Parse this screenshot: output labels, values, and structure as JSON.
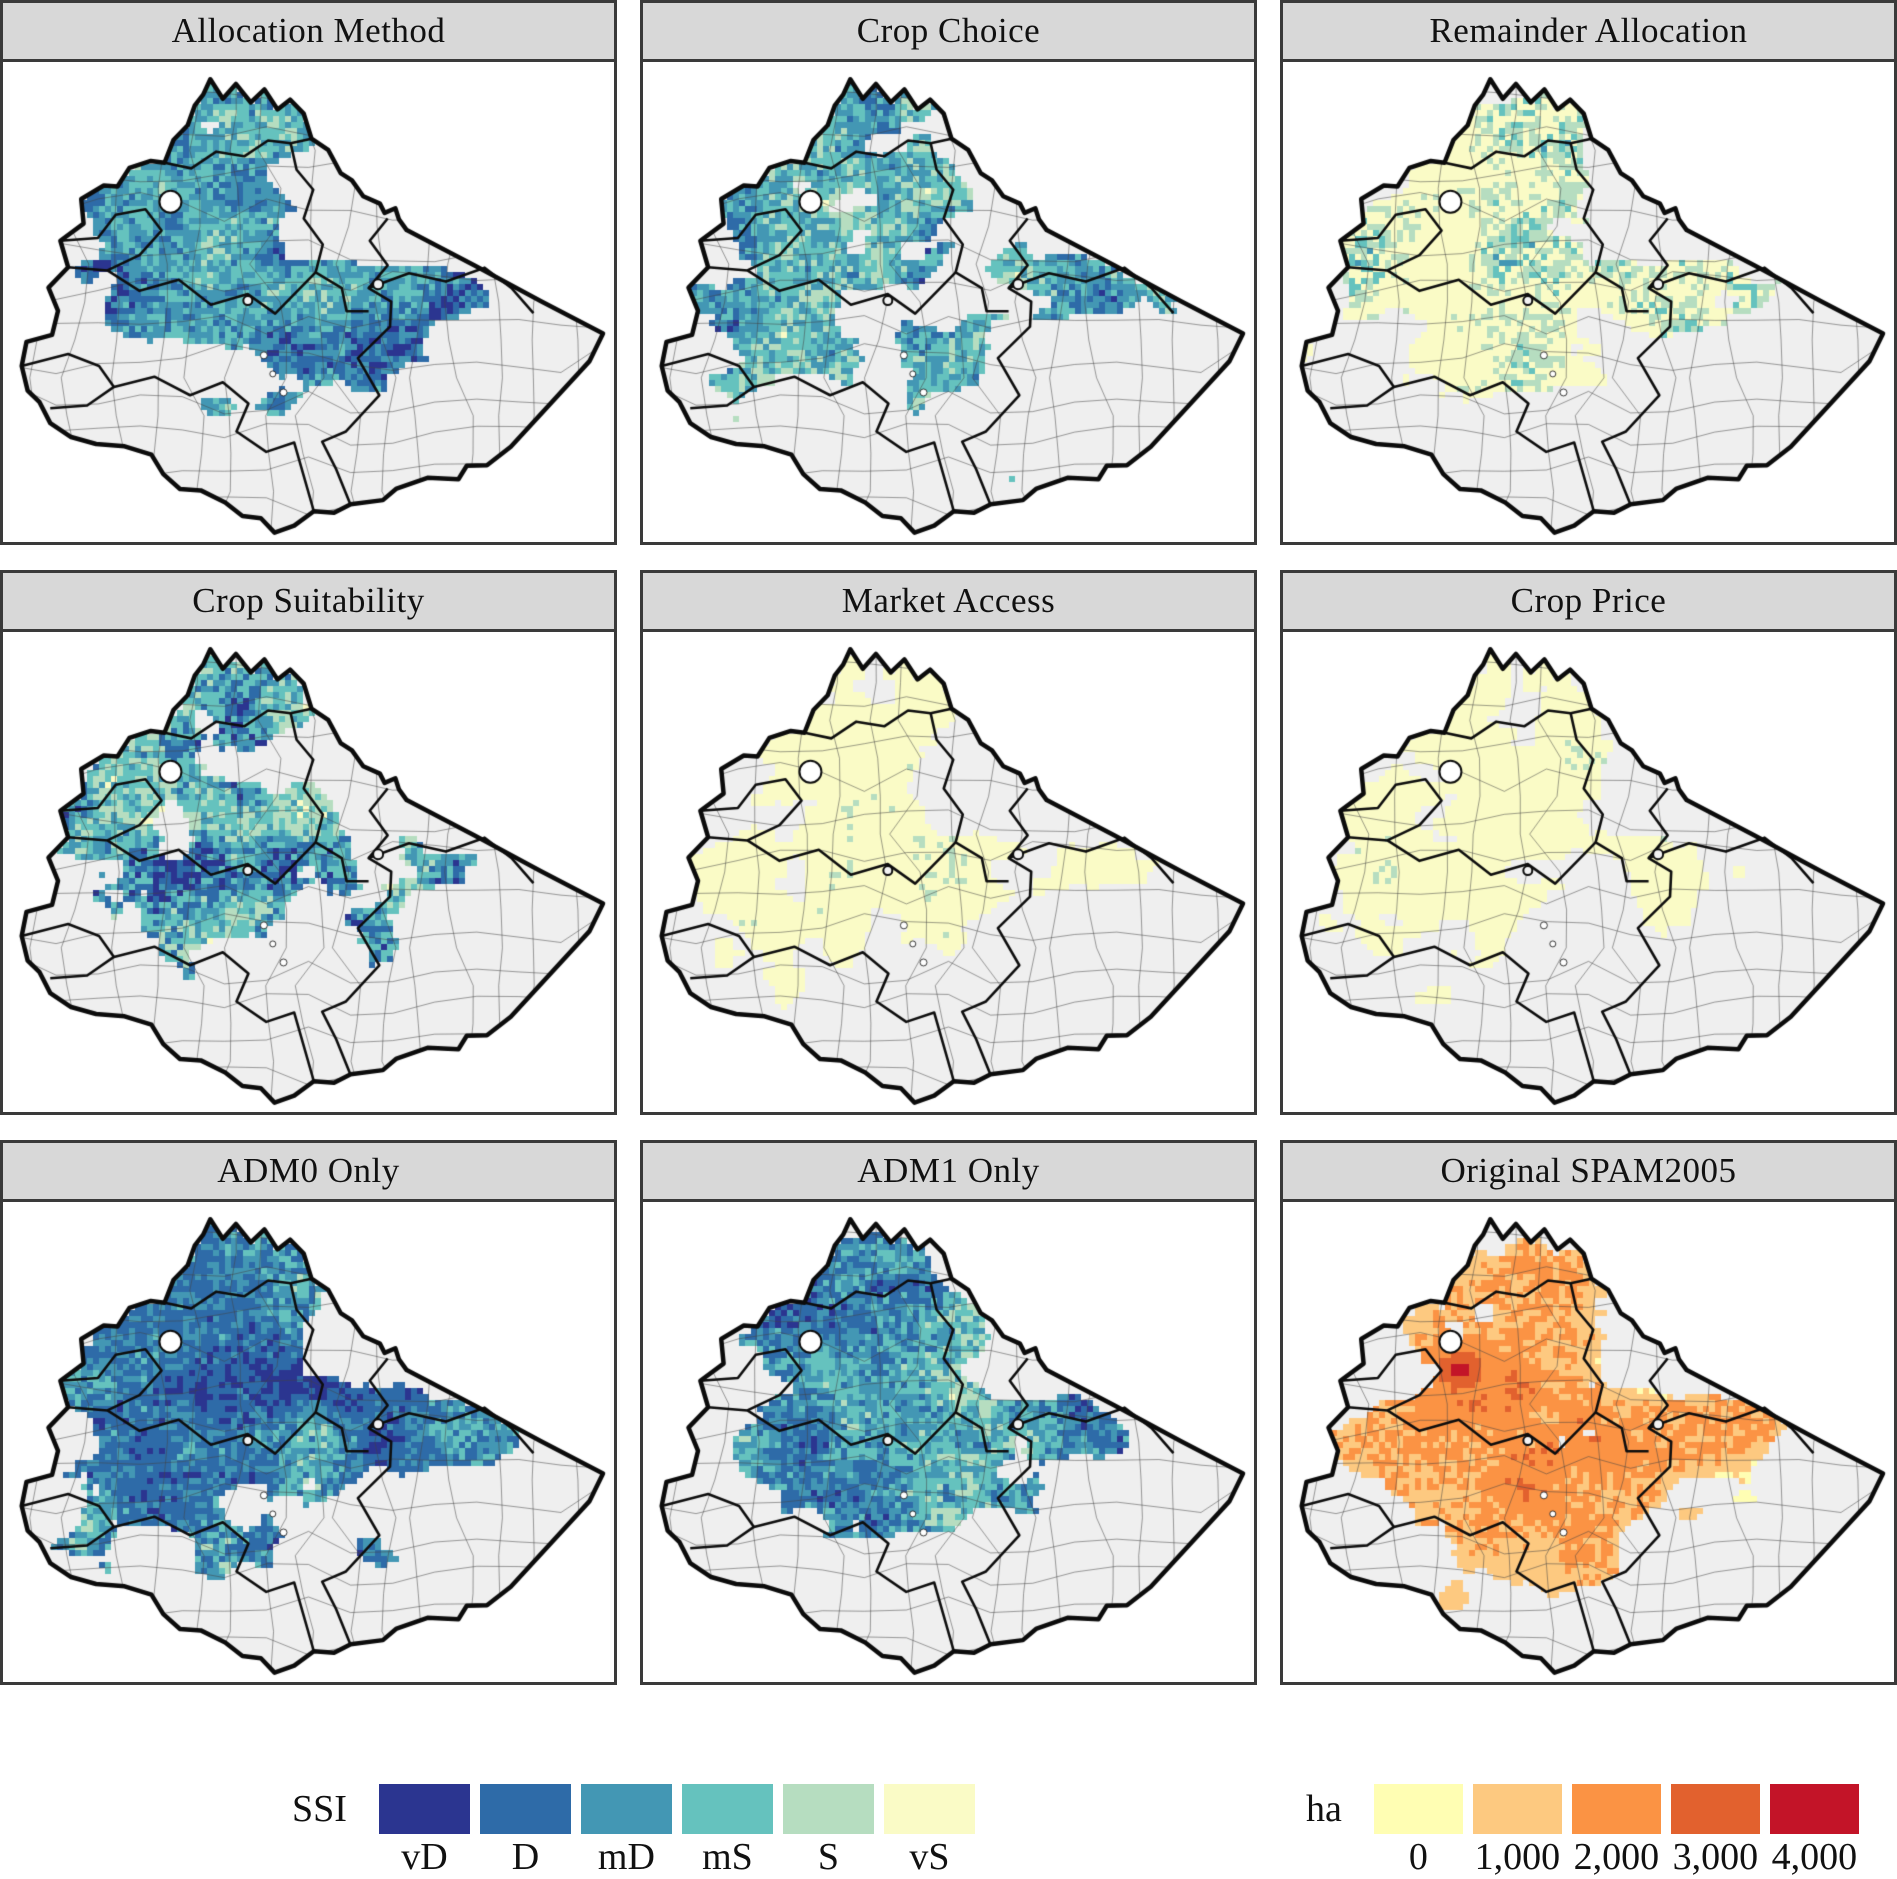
{
  "figure": {
    "panels": [
      {
        "title": "Allocation Method",
        "legend": "ssi",
        "raster": {
          "seed": 3,
          "density": 0.55,
          "weights": [
            0.28,
            0.14,
            0.16,
            0.16,
            0.13,
            0.13
          ]
        }
      },
      {
        "title": "Crop Choice",
        "legend": "ssi",
        "raster": {
          "seed": 17,
          "density": 0.5,
          "weights": [
            0.2,
            0.12,
            0.15,
            0.15,
            0.14,
            0.24
          ]
        }
      },
      {
        "title": "Remainder Allocation",
        "legend": "ssi",
        "raster": {
          "seed": 29,
          "density": 0.44,
          "weights": [
            0.06,
            0.07,
            0.05,
            0.09,
            0.13,
            0.6
          ]
        }
      },
      {
        "title": "Crop Suitability",
        "legend": "ssi",
        "raster": {
          "seed": 41,
          "density": 0.47,
          "weights": [
            0.26,
            0.1,
            0.09,
            0.15,
            0.15,
            0.25
          ]
        }
      },
      {
        "title": "Market Access",
        "legend": "ssi",
        "raster": {
          "seed": 53,
          "density": 0.46,
          "weights": [
            0.02,
            0.02,
            0.03,
            0.07,
            0.11,
            0.75
          ]
        }
      },
      {
        "title": "Crop Price",
        "legend": "ssi",
        "raster": {
          "seed": 67,
          "density": 0.43,
          "weights": [
            0.01,
            0.02,
            0.03,
            0.08,
            0.12,
            0.74
          ]
        }
      },
      {
        "title": "ADM0 Only",
        "legend": "ssi",
        "raster": {
          "seed": 79,
          "density": 0.63,
          "weights": [
            0.3,
            0.22,
            0.14,
            0.13,
            0.11,
            0.1
          ]
        }
      },
      {
        "title": "ADM1 Only",
        "legend": "ssi",
        "raster": {
          "seed": 97,
          "density": 0.58,
          "weights": [
            0.26,
            0.18,
            0.13,
            0.16,
            0.14,
            0.13
          ]
        }
      },
      {
        "title": "Original SPAM2005",
        "legend": "ha",
        "raster": {
          "seed": 113,
          "density": 0.6,
          "weights": [
            0.34,
            0.3,
            0.24,
            0.09,
            0.03
          ],
          "hotspot": true
        }
      }
    ]
  },
  "legends": {
    "ssi": {
      "title": "SSI",
      "classes": [
        {
          "label": "vD",
          "color": "#2b3590"
        },
        {
          "label": "D",
          "color": "#2e6ba8"
        },
        {
          "label": "mD",
          "color": "#4397b4"
        },
        {
          "label": "mS",
          "color": "#65c2be"
        },
        {
          "label": "S",
          "color": "#b6ddc0"
        },
        {
          "label": "vS",
          "color": "#fafbc6"
        }
      ]
    },
    "ha": {
      "title": "ha",
      "classes": [
        {
          "label": "0",
          "color": "#fffeb3"
        },
        {
          "label": "1,000",
          "color": "#fdc980"
        },
        {
          "label": "2,000",
          "color": "#fb9344"
        },
        {
          "label": "3,000",
          "color": "#e2612e"
        },
        {
          "label": "4,000",
          "color": "#c31428"
        }
      ]
    }
  },
  "map_style": {
    "land_fill": "#efefef",
    "background": "#ffffff",
    "header_fill": "#d8d8d8",
    "frame_color": "#3a3a3a",
    "country_outline_color": "#0b0b0b",
    "region_line_color": "#0d0d0d",
    "district_line_color": "#444444"
  }
}
